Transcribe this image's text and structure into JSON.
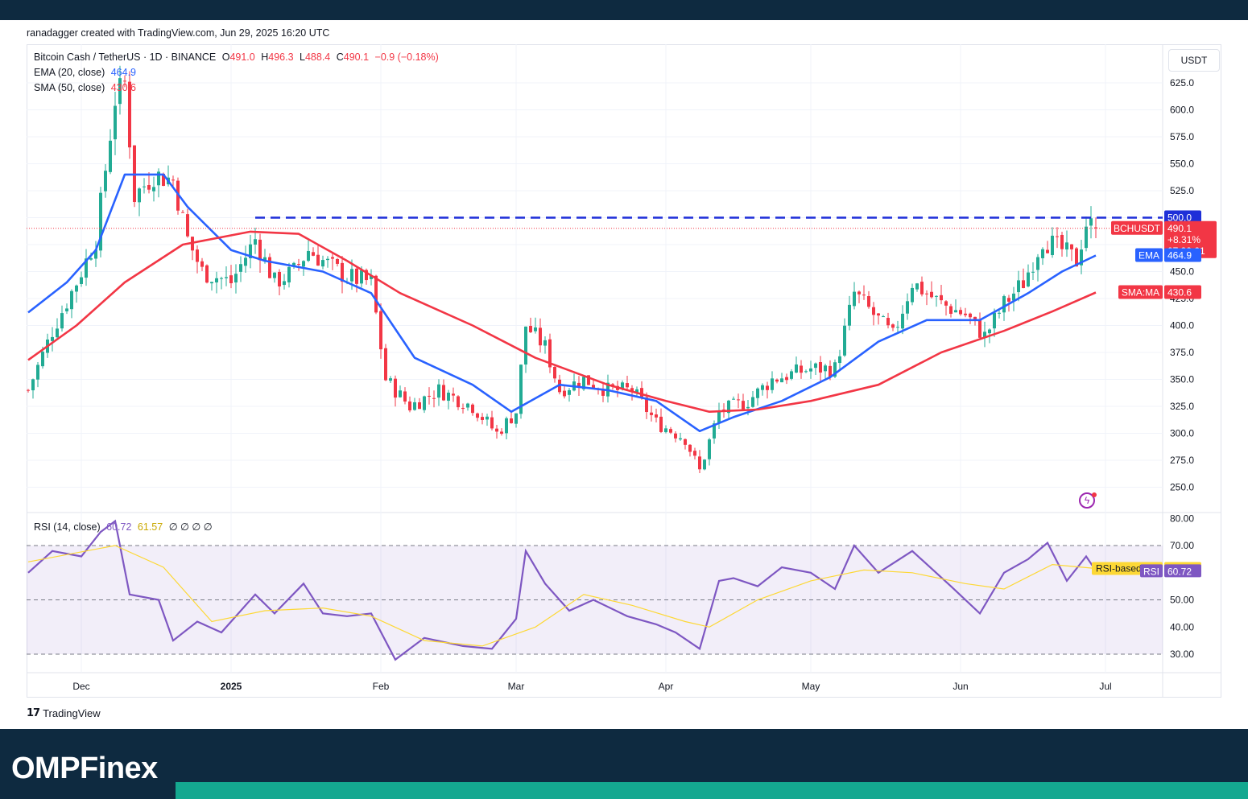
{
  "header": {
    "credit": "ranadagger created with TradingView.com, Jun 29, 2025 16:20 UTC"
  },
  "legend": {
    "symbol": "Bitcoin Cash / TetherUS · 1D · BINANCE",
    "open_label": "O",
    "open": "491.0",
    "high_label": "H",
    "high": "496.3",
    "low_label": "L",
    "low": "488.4",
    "close_label": "C",
    "close": "490.1",
    "change": "−0.9 (−0.18%)",
    "ema_label": "EMA (20, close)",
    "ema_value": "464.9",
    "sma_label": "SMA (50, close)",
    "sma_value": "430.6",
    "rsi_label": "RSI (14, close)",
    "rsi_value": "60.72",
    "rsi_ma_value": "61.57",
    "rsi_extra": "∅ ∅ ∅ ∅"
  },
  "currency_button": "USDT",
  "price_axis": [
    "625.0",
    "600.0",
    "575.0",
    "550.0",
    "525.0",
    "500.0",
    "475.0",
    "450.0",
    "425.0",
    "400.0",
    "375.0",
    "350.0",
    "325.0",
    "300.0",
    "275.0",
    "250.0"
  ],
  "rsi_axis": [
    "80.00",
    "70.00",
    "50.00",
    "40.00",
    "30.00"
  ],
  "time_axis": [
    "Dec",
    "2025",
    "Feb",
    "Mar",
    "Apr",
    "May",
    "Jun",
    "Jul"
  ],
  "badges": {
    "resistance": "500.0",
    "symbol": "BCHUSDT",
    "price": "490.1",
    "pct": "+8.31%",
    "countdown": "07:39:21",
    "ema_tag": "EMA",
    "ema_value": "464.9",
    "sma_tag": "SMA:MA",
    "sma_value": "430.6",
    "rsi_ma_tag": "RSI-based MA",
    "rsi_ma_value": "61.57",
    "rsi_tag": "RSI",
    "rsi_value": "60.72"
  },
  "colors": {
    "up": "#22ab94",
    "down": "#f23645",
    "ema": "#2962ff",
    "sma": "#f23645",
    "rsi": "#7e57c2",
    "rsi_ma": "#fdd835",
    "resistance": "#1e2fd8",
    "brand_bg": "#0e2a40",
    "brand_accent": "#14a890"
  },
  "footer": {
    "brand": "OMPFinex",
    "tv_logo": "TradingView"
  },
  "chart_data": {
    "type": "candlestick",
    "title": "Bitcoin Cash / TetherUS · 1D · BINANCE",
    "x_range": [
      "2024-11-20",
      "2025-07-12"
    ],
    "ylim": [
      235,
      645
    ],
    "resistance_level": 500,
    "last_price": 490.1,
    "price_path": [
      [
        "2024-11-20",
        340
      ],
      [
        "2024-11-25",
        395
      ],
      [
        "2024-11-30",
        440
      ],
      [
        "2024-12-04",
        480
      ],
      [
        "2024-12-08",
        610
      ],
      [
        "2024-12-10",
        625
      ],
      [
        "2024-12-12",
        520
      ],
      [
        "2024-12-16",
        540
      ],
      [
        "2024-12-20",
        535
      ],
      [
        "2024-12-23",
        480
      ],
      [
        "2024-12-26",
        450
      ],
      [
        "2025-01-01",
        440
      ],
      [
        "2025-01-06",
        480
      ],
      [
        "2025-01-10",
        440
      ],
      [
        "2025-01-14",
        450
      ],
      [
        "2025-01-17",
        470
      ],
      [
        "2025-01-20",
        460
      ],
      [
        "2025-01-25",
        445
      ],
      [
        "2025-01-30",
        440
      ],
      [
        "2025-02-02",
        350
      ],
      [
        "2025-02-07",
        325
      ],
      [
        "2025-02-13",
        340
      ],
      [
        "2025-02-20",
        325
      ],
      [
        "2025-02-25",
        300
      ],
      [
        "2025-03-01",
        320
      ],
      [
        "2025-03-03",
        400
      ],
      [
        "2025-03-07",
        380
      ],
      [
        "2025-03-10",
        340
      ],
      [
        "2025-03-15",
        350
      ],
      [
        "2025-03-20",
        340
      ],
      [
        "2025-03-25",
        340
      ],
      [
        "2025-03-30",
        310
      ],
      [
        "2025-04-05",
        295
      ],
      [
        "2025-04-08",
        265
      ],
      [
        "2025-04-12",
        320
      ],
      [
        "2025-04-18",
        330
      ],
      [
        "2025-04-23",
        350
      ],
      [
        "2025-05-01",
        360
      ],
      [
        "2025-05-06",
        360
      ],
      [
        "2025-05-10",
        430
      ],
      [
        "2025-05-14",
        410
      ],
      [
        "2025-05-18",
        390
      ],
      [
        "2025-05-22",
        440
      ],
      [
        "2025-05-28",
        420
      ],
      [
        "2025-06-02",
        410
      ],
      [
        "2025-06-06",
        390
      ],
      [
        "2025-06-10",
        420
      ],
      [
        "2025-06-14",
        440
      ],
      [
        "2025-06-18",
        480
      ],
      [
        "2025-06-22",
        470
      ],
      [
        "2025-06-25",
        460
      ],
      [
        "2025-06-27",
        495
      ],
      [
        "2025-06-29",
        490.1
      ]
    ],
    "series": [
      {
        "name": "EMA (20, close)",
        "points": [
          [
            "2024-11-20",
            412
          ],
          [
            "2024-11-28",
            440
          ],
          [
            "2024-12-04",
            470
          ],
          [
            "2024-12-10",
            540
          ],
          [
            "2024-12-18",
            540
          ],
          [
            "2024-12-23",
            510
          ],
          [
            "2025-01-01",
            470
          ],
          [
            "2025-01-08",
            460
          ],
          [
            "2025-01-20",
            450
          ],
          [
            "2025-01-30",
            430
          ],
          [
            "2025-02-08",
            370
          ],
          [
            "2025-02-20",
            345
          ],
          [
            "2025-02-28",
            320
          ],
          [
            "2025-03-10",
            345
          ],
          [
            "2025-03-20",
            340
          ],
          [
            "2025-03-30",
            330
          ],
          [
            "2025-04-08",
            302
          ],
          [
            "2025-04-15",
            315
          ],
          [
            "2025-04-25",
            330
          ],
          [
            "2025-05-05",
            352
          ],
          [
            "2025-05-15",
            385
          ],
          [
            "2025-05-25",
            405
          ],
          [
            "2025-06-05",
            405
          ],
          [
            "2025-06-15",
            430
          ],
          [
            "2025-06-22",
            450
          ],
          [
            "2025-06-29",
            464.9
          ]
        ]
      },
      {
        "name": "SMA (50, close)",
        "points": [
          [
            "2024-11-20",
            368
          ],
          [
            "2024-11-30",
            400
          ],
          [
            "2024-12-10",
            440
          ],
          [
            "2024-12-22",
            475
          ],
          [
            "2025-01-05",
            487
          ],
          [
            "2025-01-15",
            485
          ],
          [
            "2025-01-25",
            460
          ],
          [
            "2025-02-05",
            430
          ],
          [
            "2025-02-20",
            400
          ],
          [
            "2025-03-05",
            370
          ],
          [
            "2025-03-20",
            345
          ],
          [
            "2025-04-01",
            330
          ],
          [
            "2025-04-10",
            320
          ],
          [
            "2025-04-20",
            322
          ],
          [
            "2025-05-01",
            330
          ],
          [
            "2025-05-15",
            345
          ],
          [
            "2025-05-28",
            375
          ],
          [
            "2025-06-10",
            395
          ],
          [
            "2025-06-20",
            413
          ],
          [
            "2025-06-29",
            430.6
          ]
        ]
      }
    ],
    "rsi": {
      "ylim": [
        25,
        82
      ],
      "levels": [
        70,
        50,
        30
      ],
      "series": [
        {
          "name": "RSI (14, close)",
          "points": [
            [
              "2024-11-20",
              60
            ],
            [
              "2024-11-25",
              68
            ],
            [
              "2024-12-01",
              66
            ],
            [
              "2024-12-05",
              75
            ],
            [
              "2024-12-08",
              79
            ],
            [
              "2024-12-11",
              52
            ],
            [
              "2024-12-17",
              50
            ],
            [
              "2024-12-20",
              35
            ],
            [
              "2024-12-25",
              42
            ],
            [
              "2024-12-30",
              38
            ],
            [
              "2025-01-06",
              52
            ],
            [
              "2025-01-10",
              45
            ],
            [
              "2025-01-16",
              56
            ],
            [
              "2025-01-20",
              45
            ],
            [
              "2025-01-25",
              44
            ],
            [
              "2025-01-30",
              45
            ],
            [
              "2025-02-04",
              28
            ],
            [
              "2025-02-10",
              36
            ],
            [
              "2025-02-18",
              33
            ],
            [
              "2025-02-24",
              32
            ],
            [
              "2025-03-01",
              43
            ],
            [
              "2025-03-03",
              68
            ],
            [
              "2025-03-07",
              56
            ],
            [
              "2025-03-12",
              46
            ],
            [
              "2025-03-17",
              50
            ],
            [
              "2025-03-24",
              44
            ],
            [
              "2025-03-30",
              41
            ],
            [
              "2025-04-03",
              38
            ],
            [
              "2025-04-08",
              32
            ],
            [
              "2025-04-12",
              57
            ],
            [
              "2025-04-15",
              58
            ],
            [
              "2025-04-20",
              55
            ],
            [
              "2025-04-25",
              62
            ],
            [
              "2025-05-01",
              60
            ],
            [
              "2025-05-06",
              54
            ],
            [
              "2025-05-10",
              70
            ],
            [
              "2025-05-15",
              60
            ],
            [
              "2025-05-22",
              68
            ],
            [
              "2025-05-30",
              55
            ],
            [
              "2025-06-05",
              45
            ],
            [
              "2025-06-10",
              60
            ],
            [
              "2025-06-15",
              65
            ],
            [
              "2025-06-19",
              71
            ],
            [
              "2025-06-23",
              57
            ],
            [
              "2025-06-27",
              66
            ],
            [
              "2025-06-29",
              60.72
            ]
          ]
        },
        {
          "name": "RSI-based MA",
          "points": [
            [
              "2024-11-20",
              64
            ],
            [
              "2024-12-08",
              70
            ],
            [
              "2024-12-18",
              62
            ],
            [
              "2024-12-28",
              42
            ],
            [
              "2025-01-08",
              46
            ],
            [
              "2025-01-20",
              47
            ],
            [
              "2025-01-30",
              44
            ],
            [
              "2025-02-10",
              35
            ],
            [
              "2025-02-22",
              33
            ],
            [
              "2025-03-05",
              40
            ],
            [
              "2025-03-15",
              52
            ],
            [
              "2025-03-25",
              48
            ],
            [
              "2025-04-05",
              42
            ],
            [
              "2025-04-10",
              40
            ],
            [
              "2025-04-20",
              50
            ],
            [
              "2025-05-01",
              57
            ],
            [
              "2025-05-12",
              61
            ],
            [
              "2025-05-22",
              60
            ],
            [
              "2025-06-02",
              56
            ],
            [
              "2025-06-10",
              54
            ],
            [
              "2025-06-20",
              63
            ],
            [
              "2025-06-29",
              61.57
            ]
          ]
        }
      ]
    }
  }
}
